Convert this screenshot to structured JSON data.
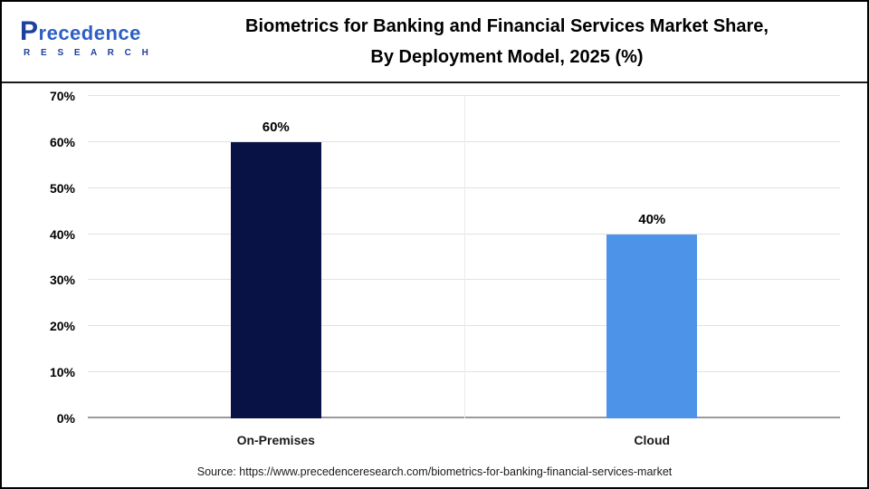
{
  "header": {
    "logo": {
      "brand": "Precedence",
      "sub": "R E S E A R C H"
    },
    "title_line1": "Biometrics for Banking and Financial Services Market Share,",
    "title_line2": "By Deployment Model, 2025 (%)"
  },
  "chart_data": {
    "type": "bar",
    "title": "Biometrics for Banking and Financial Services Market Share, By Deployment Model, 2025 (%)",
    "categories": [
      "On-Premises",
      "Cloud"
    ],
    "values": [
      60,
      40
    ],
    "value_labels": [
      "60%",
      "40%"
    ],
    "xlabel": "",
    "ylabel": "",
    "ylim": [
      0,
      70
    ],
    "yticks": [
      "0%",
      "10%",
      "20%",
      "30%",
      "40%",
      "50%",
      "60%",
      "70%"
    ],
    "grid": "horizontal",
    "legend": "none",
    "bar_colors": [
      "#081245",
      "#4d93e8"
    ]
  },
  "footer": {
    "source": "Source: https://www.precedenceresearch.com/biometrics-for-banking-financial-services-market"
  }
}
